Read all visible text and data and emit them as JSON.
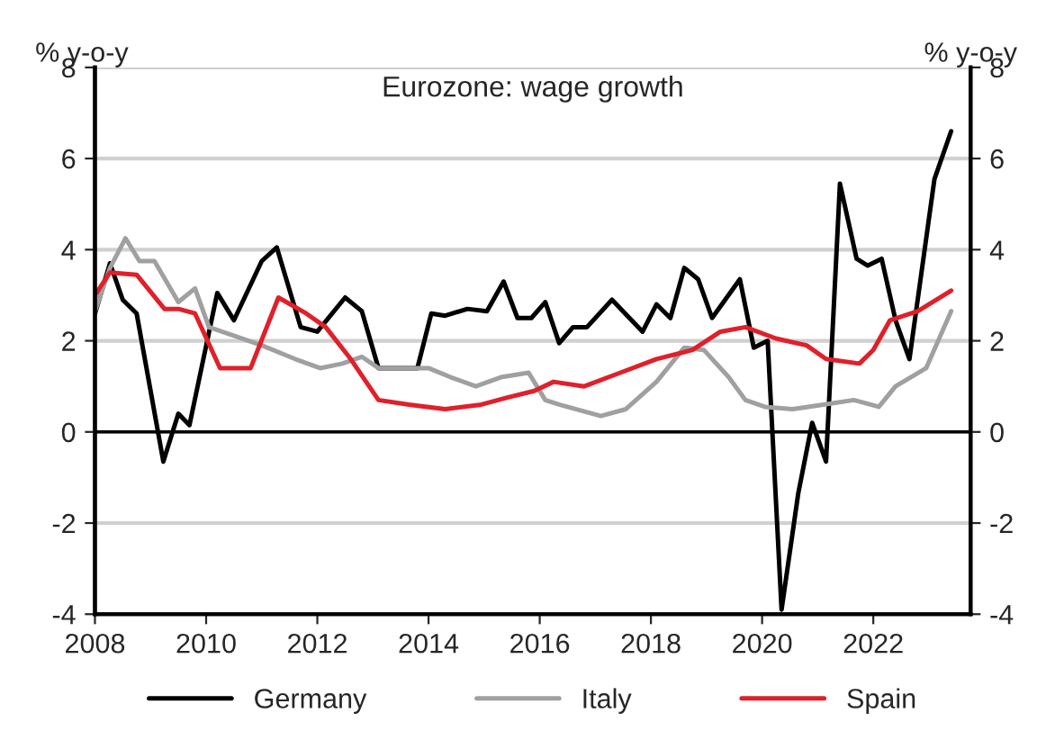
{
  "chart_data": {
    "type": "line",
    "title": "Eurozone: wage growth",
    "ylabel": "% y-o-y",
    "y2label": "% y-o-y",
    "xlim": [
      2008,
      2023.75
    ],
    "xticks": [
      2008,
      2010,
      2012,
      2014,
      2016,
      2018,
      2020,
      2022
    ],
    "ylim": [
      -4,
      8
    ],
    "yticks": [
      -4,
      -2,
      0,
      2,
      4,
      6,
      8
    ],
    "y2lim": [
      -4,
      8
    ],
    "y2ticks": [
      -4,
      -2,
      0,
      2,
      4,
      6,
      8
    ],
    "grid": "y",
    "legend": "bottom",
    "line_style": "solid",
    "marker": "none",
    "ref_lines": [
      {
        "axis": "y",
        "value": 0,
        "color": "#000000"
      }
    ],
    "series": [
      {
        "name": "Germany",
        "color": "#000000",
        "x": [
          2008.0,
          2008.27,
          2008.5,
          2008.75,
          2009.23,
          2009.5,
          2009.7,
          2010.2,
          2010.5,
          2011.0,
          2011.27,
          2011.7,
          2012.0,
          2012.5,
          2012.8,
          2013.1,
          2013.8,
          2014.05,
          2014.3,
          2014.7,
          2015.05,
          2015.35,
          2015.6,
          2015.85,
          2016.1,
          2016.35,
          2016.6,
          2016.85,
          2017.3,
          2017.85,
          2018.1,
          2018.35,
          2018.6,
          2018.85,
          2019.1,
          2019.6,
          2019.85,
          2020.1,
          2020.35,
          2020.65,
          2020.9,
          2021.15,
          2021.4,
          2021.7,
          2021.9,
          2022.15,
          2022.4,
          2022.65,
          2023.1,
          2023.4
        ],
        "values": [
          2.6,
          3.7,
          2.9,
          2.6,
          -0.65,
          0.4,
          0.15,
          3.05,
          2.45,
          3.75,
          4.05,
          2.3,
          2.2,
          2.95,
          2.65,
          1.4,
          1.4,
          2.6,
          2.55,
          2.7,
          2.65,
          3.3,
          2.5,
          2.5,
          2.85,
          1.95,
          2.3,
          2.3,
          2.9,
          2.2,
          2.8,
          2.5,
          3.6,
          3.35,
          2.5,
          3.35,
          1.85,
          2.0,
          -3.9,
          -1.35,
          0.2,
          -0.65,
          5.45,
          3.8,
          3.65,
          3.8,
          2.45,
          1.6,
          5.55,
          6.6
        ]
      },
      {
        "name": "Italy",
        "color": "#a0a0a0",
        "x": [
          2008.0,
          2008.27,
          2008.55,
          2008.8,
          2009.07,
          2009.5,
          2009.8,
          2010.05,
          2011.0,
          2011.6,
          2012.05,
          2012.45,
          2012.8,
          2013.1,
          2014.0,
          2014.4,
          2014.85,
          2015.3,
          2015.8,
          2016.1,
          2016.35,
          2017.1,
          2017.55,
          2018.1,
          2018.6,
          2018.95,
          2019.4,
          2019.7,
          2020.05,
          2020.55,
          2021.1,
          2021.65,
          2022.1,
          2022.4,
          2022.95,
          2023.4
        ],
        "values": [
          2.65,
          3.6,
          4.25,
          3.75,
          3.75,
          2.85,
          3.15,
          2.3,
          1.9,
          1.6,
          1.4,
          1.5,
          1.65,
          1.4,
          1.4,
          1.2,
          1.0,
          1.2,
          1.3,
          0.7,
          0.6,
          0.35,
          0.5,
          1.1,
          1.85,
          1.8,
          1.2,
          0.7,
          0.55,
          0.5,
          0.6,
          0.7,
          0.55,
          1.0,
          1.4,
          2.65
        ]
      },
      {
        "name": "Spain",
        "color": "#e0202a",
        "x": [
          2008.0,
          2008.27,
          2008.75,
          2009.25,
          2009.5,
          2009.8,
          2010.25,
          2010.8,
          2011.3,
          2011.8,
          2012.15,
          2012.6,
          2013.1,
          2013.65,
          2014.3,
          2014.95,
          2015.4,
          2015.9,
          2016.25,
          2016.8,
          2017.45,
          2018.1,
          2018.75,
          2019.25,
          2019.7,
          2020.25,
          2020.8,
          2021.15,
          2021.75,
          2022.0,
          2022.3,
          2022.8,
          2023.4
        ],
        "values": [
          3.0,
          3.5,
          3.45,
          2.7,
          2.7,
          2.6,
          1.4,
          1.4,
          2.95,
          2.6,
          2.3,
          1.6,
          0.7,
          0.6,
          0.5,
          0.6,
          0.75,
          0.9,
          1.1,
          1.0,
          1.3,
          1.6,
          1.8,
          2.2,
          2.3,
          2.05,
          1.9,
          1.6,
          1.5,
          1.8,
          2.45,
          2.65,
          3.1
        ]
      }
    ]
  }
}
